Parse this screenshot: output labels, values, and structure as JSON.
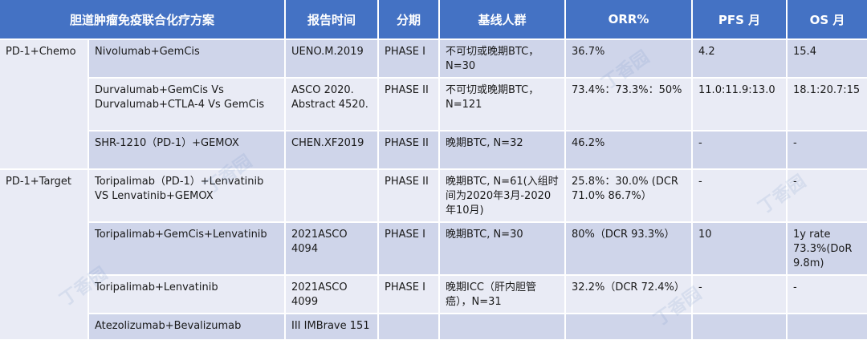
{
  "table": {
    "headers": [
      "胆道肿瘤免疫联合化疗方案",
      "报告时间",
      "分期",
      "基线人群",
      "ORR%",
      "PFS 月",
      "OS 月"
    ],
    "groups": {
      "chemo": "PD-1+Chemo",
      "target": "PD-1+Target"
    },
    "rows": [
      {
        "regimen": "Nivolumab+GemCis",
        "report": "UENO.M.2019",
        "phase": "PHASE I",
        "population": "不可切或晚期BTC，N=30",
        "orr": "36.7%",
        "pfs": "4.2",
        "os": "15.4"
      },
      {
        "regimen": "Durvalumab+GemCis Vs Durvalumab+CTLA-4 Vs GemCis",
        "report": "ASCO 2020. Abstract 4520.",
        "phase": "PHASE II",
        "population": "不可切或晚期BTC，N=121",
        "orr": "73.4%：73.3%：50%",
        "pfs": "11.0:11.9:13.0",
        "os": "18.1:20.7:15"
      },
      {
        "regimen": "SHR-1210（PD-1）+GEMOX",
        "report": "CHEN.XF2019",
        "phase": "PHASE II",
        "population": "晚期BTC, N=32",
        "orr": "46.2%",
        "pfs": "-",
        "os": "-"
      },
      {
        "regimen": "Toripalimab（PD-1）+Lenvatinib VS Lenvatinib+GEMOX",
        "report": "",
        "phase": "PHASE II",
        "population": "晚期BTC, N=61(入组时间为2020年3月-2020年10月)",
        "orr": "25.8%：30.0% (DCR 71.0% 86.7%）",
        "pfs": "-",
        "os": "-"
      },
      {
        "regimen": "Toripalimab+GemCis+Lenvatinib",
        "report": "2021ASCO 4094",
        "phase": "PHASE I",
        "population": "晚期BTC, N=30",
        "orr": "80%（DCR 93.3%）",
        "pfs": "10",
        "os": "1y rate 73.3%(DoR 9.8m)"
      },
      {
        "regimen": "Toripalimab+Lenvatinib",
        "report": "2021ASCO 4099",
        "phase": "PHASE I",
        "population": "晚期ICC（肝内胆管癌），N=31",
        "orr": "32.2%（DCR 72.4%）",
        "pfs": "-",
        "os": "-"
      },
      {
        "regimen": "Atezolizumab+Bevalizumab",
        "report": "III IMBrave 151",
        "phase": "",
        "population": "",
        "orr": "",
        "pfs": "",
        "os": ""
      }
    ]
  },
  "watermark": "丁香园"
}
